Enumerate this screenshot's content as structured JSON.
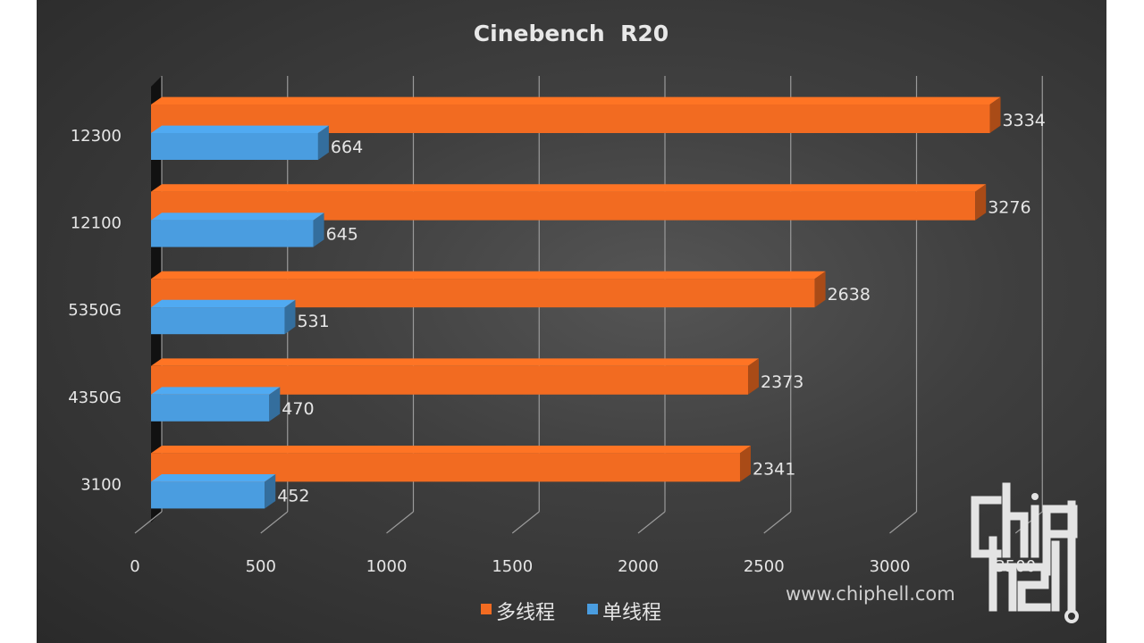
{
  "chart_data": {
    "type": "bar",
    "orientation": "horizontal",
    "title": "Cinebench  R20",
    "categories": [
      "12300",
      "12100",
      "5350G",
      "4350G",
      "3100"
    ],
    "series": [
      {
        "name": "多线程",
        "values": [
          3334,
          3276,
          2638,
          2373,
          2341
        ],
        "color": "#f26b21"
      },
      {
        "name": "单线程",
        "values": [
          664,
          645,
          531,
          470,
          452
        ],
        "color": "#4a9de0"
      }
    ],
    "x_ticks": [
      "0",
      "500",
      "1000",
      "1500",
      "2000",
      "2500",
      "3000",
      "3500"
    ],
    "xlim": [
      0,
      3500
    ],
    "grid": true,
    "legend_position": "bottom",
    "style": "3d"
  },
  "watermark": {
    "url": "www.chiphell.com",
    "logo": "chiphell"
  }
}
